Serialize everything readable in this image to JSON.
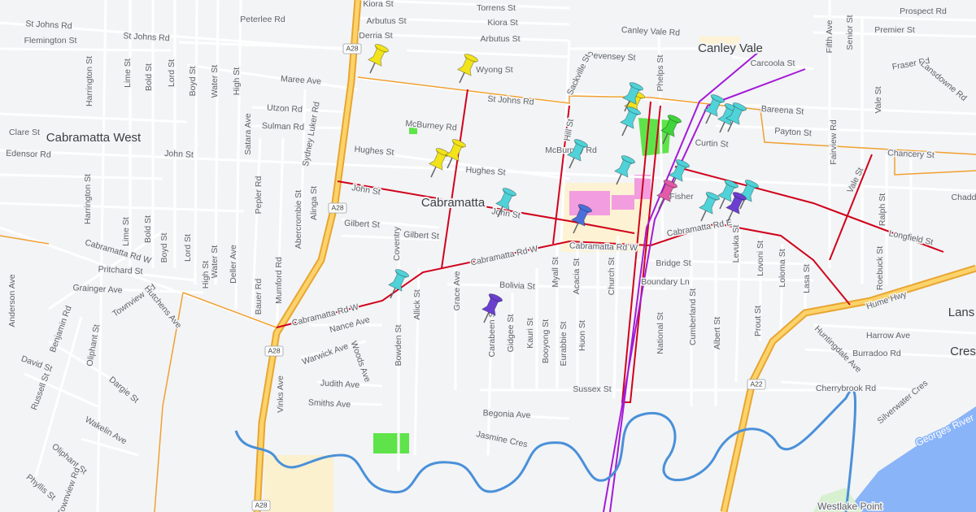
{
  "places": [
    "Cabramatta West",
    "Cabramatta",
    "Canley Vale",
    "Lans",
    "Cres"
  ],
  "streets": [
    "Kiora St",
    "Torrens St",
    "Arbutus St",
    "Kiora St",
    "Derria St",
    "Arbutus St",
    "Wyong St",
    "Peterlee Rd",
    "St Johns Rd",
    "St Johns Rd",
    "Flemington St",
    "Maree Ave",
    "St Johns Rd",
    "Utzon Rd",
    "Sulman Rd",
    "McBurney Rd",
    "Clare St",
    "Edensor Rd",
    "John St",
    "Hughes St",
    "Hughes St",
    "John St",
    "John St",
    "Gilbert St",
    "Gilbert St",
    "Cabramatta Rd W",
    "Pritchard St",
    "Grainger Ave",
    "Townview Rd",
    "Cabramatta Rd W",
    "Cabramatta Rd W",
    "Cabramatta Rd W",
    "Cabramatta Rd E",
    "Bridge St",
    "Boundary Ln",
    "Bolivia St",
    "Nance Ave",
    "Warwick Ave",
    "Judith Ave",
    "Smiths Ave",
    "Sussex St",
    "Begonia Ave",
    "Jasmine Cres",
    "Canley Vale Rd",
    "Pevensey St",
    "Prospect Rd",
    "Premier St",
    "Fraser Rd",
    "Carcoola St",
    "Bareena St",
    "Payton St",
    "Curtin St",
    "Chancery St",
    "Lansdowne Rd",
    "Longfield St",
    "Hume Hwy",
    "Harrow Ave",
    "Burradoo Rd",
    "Cherrybrook Rd",
    "Silverwater Cres",
    "Georges River",
    "Westlake Point",
    "National St",
    "Cumberland St",
    "Albert St",
    "Prout St",
    "Levuka St",
    "Lovoni St",
    "Loloma St",
    "Lasa St",
    "Ralph St",
    "Roebuck St",
    "Vale St",
    "Vale St",
    "Fairview Rd",
    "Harrington St",
    "Harrington St",
    "Lime St",
    "Bold St",
    "Lord St",
    "Boyd St",
    "Water St",
    "High St",
    "Satara Ave",
    "Sydney Luker Rd",
    "Alinga St",
    "Pepler Rd",
    "Abercrombie St",
    "Mumford Rd",
    "Bauer Rd",
    "Deller Ave",
    "Water St",
    "High St",
    "Boyd St",
    "Bold St",
    "Lord St",
    "Lime St",
    "Anderson Ave",
    "Benjamin Rd",
    "Oliphant St",
    "David St",
    "Russell St",
    "Dargie St",
    "Wakelin Ave",
    "Oliphant St",
    "Phyllis St",
    "Townview Rd",
    "Hutchens Ave",
    "Vinks Ave",
    "Woods Ave",
    "Bowden St",
    "Coventry",
    "Allick St",
    "Grace Ave",
    "Carabeen St",
    "Gidgee St",
    "Kauri St",
    "Booyong St",
    "Eurabbie St",
    "Huon St",
    "Myall St",
    "Acacia St",
    "Church St",
    "Sackville St",
    "Hill St",
    "Phelps St",
    "Fifth Ave",
    "Senior St",
    "Huntingdale Ave",
    "Fisher",
    "Chadd",
    "McBurney Rd"
  ],
  "shields": [
    "A28",
    "A28",
    "A28",
    "A28",
    "A22"
  ]
}
